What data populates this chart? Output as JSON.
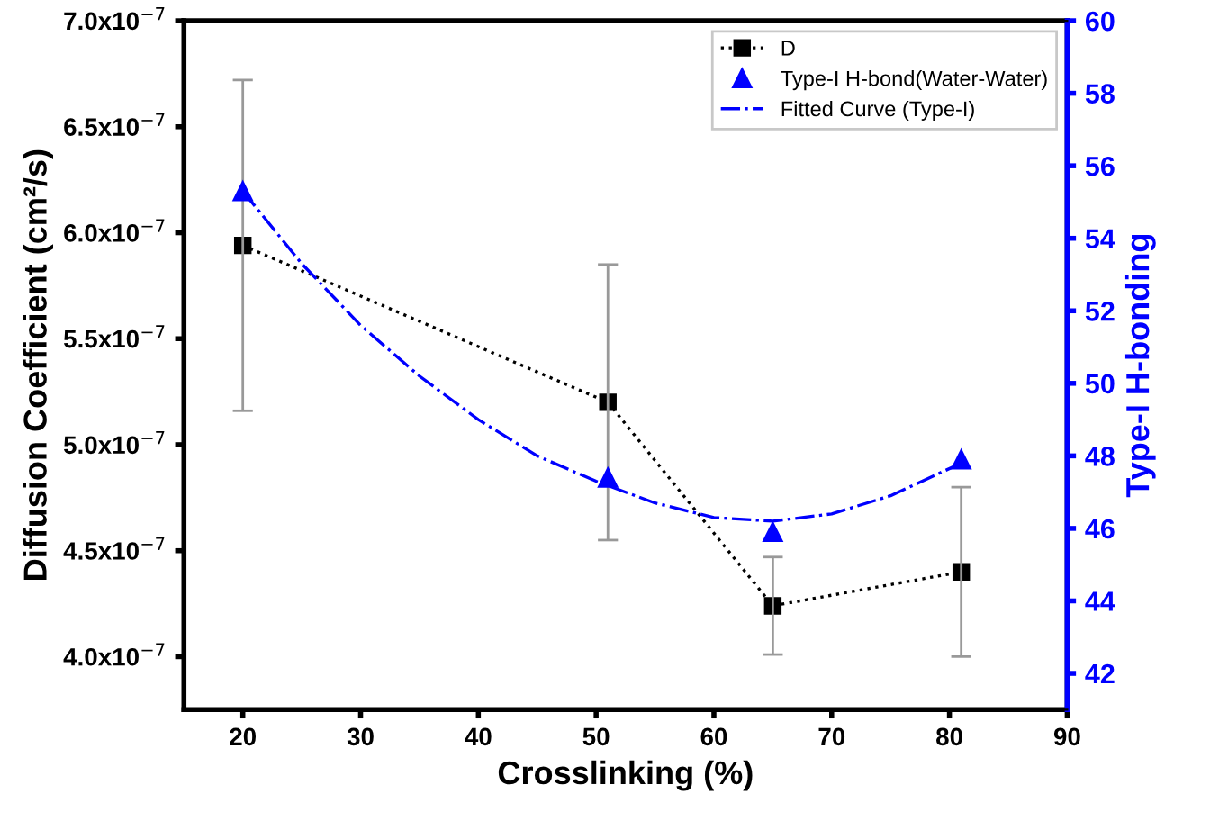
{
  "chart_data": {
    "type": "line",
    "xlabel": "Crosslinking (%)",
    "ylabel": "Diffusion Coefficient (cm²/s)",
    "y2label": "Type-I H-bonding",
    "x": [
      20,
      51,
      65,
      81
    ],
    "xlim": [
      15,
      90
    ],
    "xticks": [
      20,
      30,
      40,
      50,
      60,
      70,
      80,
      90
    ],
    "ylim": [
      3.75e-07,
      7e-07
    ],
    "yticks": [
      {
        "value": 4e-07,
        "label": "4.0x10$^{−7}$"
      },
      {
        "value": 4.5e-07,
        "label": "4.5x10$^{−7}$"
      },
      {
        "value": 5e-07,
        "label": "5.0x10$^{−7}$"
      },
      {
        "value": 5.5e-07,
        "label": "5.5x10$^{−7}$"
      },
      {
        "value": 6e-07,
        "label": "6.0x10$^{−7}$"
      },
      {
        "value": 6.5e-07,
        "label": "6.5x10$^{−7}$"
      },
      {
        "value": 7e-07,
        "label": "7.0x10$^{−7}$"
      }
    ],
    "y2lim": [
      41,
      60
    ],
    "y2ticks": [
      42,
      44,
      46,
      48,
      50,
      52,
      54,
      56,
      58,
      60
    ],
    "legend": "top right",
    "grid": false,
    "series": [
      {
        "name": "D",
        "color": "#000000",
        "marker": "square",
        "line_style": "dotted",
        "values": [
          5.94e-07,
          5.2e-07,
          4.24e-07,
          4.4e-07
        ],
        "errors": [
          7.8e-08,
          6.5e-08,
          2.3e-08,
          4e-08
        ]
      },
      {
        "name": "Type-I H-bond(Water-Water)",
        "type": "scatter",
        "axis": "y2",
        "color": "#0000ff",
        "marker": "triangle",
        "values": [
          55.3,
          47.4,
          45.9,
          47.9
        ]
      },
      {
        "name": "Fitted Curve (Type-I)",
        "type": "line",
        "axis": "y2",
        "color": "#0000ff",
        "marker": "none",
        "line_style": "dashdot",
        "x": [
          20,
          25,
          30,
          35,
          40,
          45,
          50,
          55,
          60,
          65,
          70,
          75,
          81
        ],
        "values": [
          55.3,
          53.3,
          51.6,
          50.2,
          49.0,
          48.0,
          47.3,
          46.7,
          46.3,
          46.2,
          46.4,
          46.9,
          47.8
        ]
      }
    ]
  }
}
